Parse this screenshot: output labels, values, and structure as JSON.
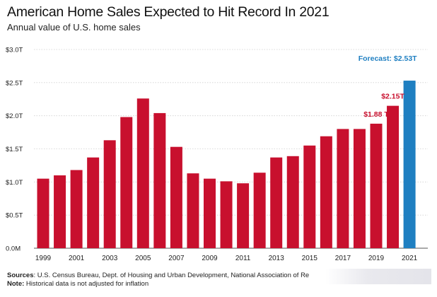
{
  "title": "American Home Sales Expected to Hit Record In 2021",
  "subtitle": "Annual value of U.S. home sales",
  "footer": {
    "sources_label": "Sources",
    "sources_text": ": U.S. Census Bureau, Dept. of Housing and Urban Development, National Association of Re",
    "note_label": "Note:",
    "note_text": " Historical data is not adjusted for inflation"
  },
  "colors": {
    "bar": "#c8102e",
    "forecast": "#1f7fc1",
    "grid": "#d0d0d0"
  },
  "chart_data": {
    "type": "bar",
    "years": [
      1999,
      2000,
      2001,
      2002,
      2003,
      2004,
      2005,
      2006,
      2007,
      2008,
      2009,
      2010,
      2011,
      2012,
      2013,
      2014,
      2015,
      2016,
      2017,
      2018,
      2019,
      2020,
      2021
    ],
    "values": [
      1.05,
      1.1,
      1.18,
      1.37,
      1.63,
      1.98,
      2.26,
      2.04,
      1.53,
      1.13,
      1.05,
      1.01,
      0.98,
      1.14,
      1.37,
      1.39,
      1.55,
      1.69,
      1.8,
      1.8,
      1.88,
      2.15,
      2.53
    ],
    "forecast_year": 2021,
    "ylim": [
      0,
      3.0
    ],
    "yticks": [
      0,
      0.5,
      1.0,
      1.5,
      2.0,
      2.5,
      3.0
    ],
    "ytick_labels": [
      "0.0M",
      "$0.5T",
      "$1.0T",
      "$1.5T",
      "$2.0T",
      "$2.5T",
      "$3.0T"
    ],
    "xtick_labels": [
      "1999",
      "2001",
      "2003",
      "2005",
      "2007",
      "2009",
      "2011",
      "2013",
      "2015",
      "2017",
      "2019",
      "2021"
    ],
    "annotations": [
      {
        "year": 2019,
        "text": "$1.88 T",
        "color": "#c8102e"
      },
      {
        "year": 2020,
        "text": "$2.15T",
        "color": "#c8102e"
      },
      {
        "year": 2021,
        "text": "Forecast: $2.53T",
        "color": "#1f7fc1"
      }
    ],
    "grid": true
  }
}
